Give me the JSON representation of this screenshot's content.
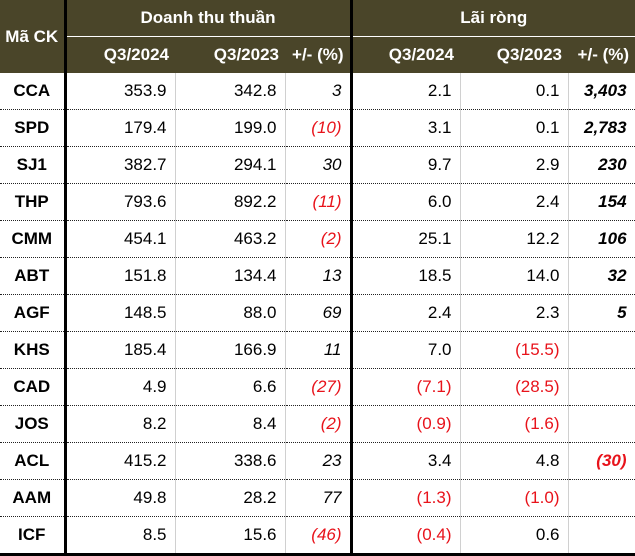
{
  "header": {
    "code": "Mã CK",
    "group_revenue": "Doanh thu thuần",
    "group_profit": "Lãi ròng",
    "sub": [
      "Q3/2024",
      "Q3/2023",
      "+/- (%)",
      "Q3/2024",
      "Q3/2023",
      "+/- (%)"
    ]
  },
  "rows": [
    {
      "code": "CCA",
      "rev24": "353.9",
      "rev23": "342.8",
      "rev_pct": "3",
      "np24": "2.1",
      "np23": "0.1",
      "np_pct": "3,403"
    },
    {
      "code": "SPD",
      "rev24": "179.4",
      "rev23": "199.0",
      "rev_pct": "(10)",
      "np24": "3.1",
      "np23": "0.1",
      "np_pct": "2,783"
    },
    {
      "code": "SJ1",
      "rev24": "382.7",
      "rev23": "294.1",
      "rev_pct": "30",
      "np24": "9.7",
      "np23": "2.9",
      "np_pct": "230"
    },
    {
      "code": "THP",
      "rev24": "793.6",
      "rev23": "892.2",
      "rev_pct": "(11)",
      "np24": "6.0",
      "np23": "2.4",
      "np_pct": "154"
    },
    {
      "code": "CMM",
      "rev24": "454.1",
      "rev23": "463.2",
      "rev_pct": "(2)",
      "np24": "25.1",
      "np23": "12.2",
      "np_pct": "106"
    },
    {
      "code": "ABT",
      "rev24": "151.8",
      "rev23": "134.4",
      "rev_pct": "13",
      "np24": "18.5",
      "np23": "14.0",
      "np_pct": "32"
    },
    {
      "code": "AGF",
      "rev24": "148.5",
      "rev23": "88.0",
      "rev_pct": "69",
      "np24": "2.4",
      "np23": "2.3",
      "np_pct": "5"
    },
    {
      "code": "KHS",
      "rev24": "185.4",
      "rev23": "166.9",
      "rev_pct": "11",
      "np24": "7.0",
      "np23": "(15.5)",
      "np_pct": ""
    },
    {
      "code": "CAD",
      "rev24": "4.9",
      "rev23": "6.6",
      "rev_pct": "(27)",
      "np24": "(7.1)",
      "np23": "(28.5)",
      "np_pct": ""
    },
    {
      "code": "JOS",
      "rev24": "8.2",
      "rev23": "8.4",
      "rev_pct": "(2)",
      "np24": "(0.9)",
      "np23": "(1.6)",
      "np_pct": ""
    },
    {
      "code": "ACL",
      "rev24": "415.2",
      "rev23": "338.6",
      "rev_pct": "23",
      "np24": "3.4",
      "np23": "4.8",
      "np_pct": "(30)"
    },
    {
      "code": "AAM",
      "rev24": "49.8",
      "rev23": "28.2",
      "rev_pct": "77",
      "np24": "(1.3)",
      "np23": "(1.0)",
      "np_pct": ""
    },
    {
      "code": "ICF",
      "rev24": "8.5",
      "rev23": "15.6",
      "rev_pct": "(46)",
      "np24": "(0.4)",
      "np23": "0.6",
      "np_pct": ""
    }
  ]
}
